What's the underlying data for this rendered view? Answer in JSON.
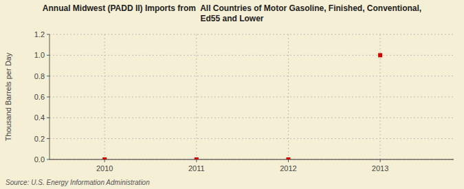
{
  "chart_data": {
    "type": "scatter",
    "title": "Annual Midwest (PADD II) Imports from  All Countries of Motor Gasoline, Finished, Conventional,\nEd55 and Lower",
    "y_label": "Thousand Barrels per Day",
    "source": "Source: U.S. Energy Information Administration",
    "x": [
      2010,
      2011,
      2012,
      2013
    ],
    "values": [
      0.0,
      0.0,
      0.0,
      1.0
    ],
    "color": "#cc0000",
    "marker": "square",
    "xlim": [
      2009.4,
      2013.8
    ],
    "ylim": [
      0.0,
      1.2
    ],
    "xticks": [
      2010,
      2011,
      2012,
      2013
    ],
    "yticks": [
      {
        "value": 0.0,
        "label": "0.0"
      },
      0.2,
      0.4,
      0.6,
      0.8,
      {
        "value": 1.0,
        "label": "1.0"
      },
      1.2
    ],
    "grid": true
  }
}
